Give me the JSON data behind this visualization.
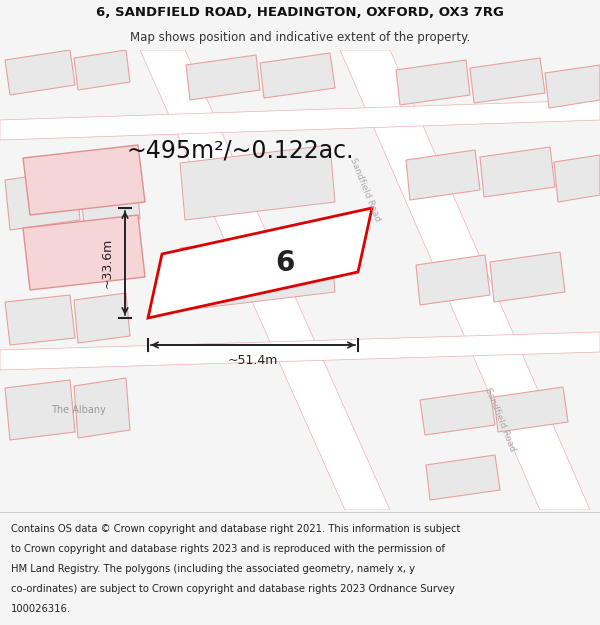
{
  "title_line1": "6, SANDFIELD ROAD, HEADINGTON, OXFORD, OX3 7RG",
  "title_line2": "Map shows position and indicative extent of the property.",
  "area_text": "~495m²/~0.122ac.",
  "property_number": "6",
  "dim_width": "~51.4m",
  "dim_height": "~33.6m",
  "road_label": "Sandfield Road",
  "albany_label": "The Albany",
  "footer_lines": [
    "Contains OS data © Crown copyright and database right 2021. This information is subject",
    "to Crown copyright and database rights 2023 and is reproduced with the permission of",
    "HM Land Registry. The polygons (including the associated geometry, namely x, y",
    "co-ordinates) are subject to Crown copyright and database rights 2023 Ordnance Survey",
    "100026316."
  ],
  "bg_color": "#f5f5f5",
  "map_bg": "#f8f8f8",
  "property_edge": "#dd0000",
  "building_fill": "#e8e8e8",
  "building_edge": "#e8a0a0",
  "building_fill_pink": "#f5d5d5",
  "building_edge_pink": "#e09090",
  "road_fill": "#ffffff",
  "road_edge": "#f0b0b0",
  "header_bg": "#ffffff",
  "footer_bg": "#ffffff",
  "title_fontsize": 9.5,
  "subtitle_fontsize": 8.5,
  "area_fontsize": 17,
  "footer_fontsize": 7.2
}
